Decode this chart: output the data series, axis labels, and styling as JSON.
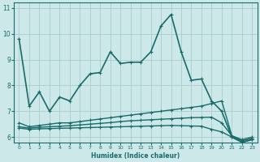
{
  "xlabel": "Humidex (Indice chaleur)",
  "bg_color": "#cce8e8",
  "grid_color": "#aacccc",
  "line_color": "#1a6b6b",
  "xlim": [
    -0.5,
    23.5
  ],
  "ylim": [
    5.8,
    11.2
  ],
  "yticks": [
    6,
    7,
    8,
    9,
    10,
    11
  ],
  "xticks": [
    0,
    1,
    2,
    3,
    4,
    5,
    6,
    7,
    8,
    9,
    10,
    11,
    12,
    13,
    14,
    15,
    16,
    17,
    18,
    19,
    20,
    21,
    22,
    23
  ],
  "series": [
    {
      "x": [
        0,
        1,
        2,
        3,
        4,
        5,
        6,
        7,
        8,
        9,
        10,
        11,
        12,
        13,
        14,
        15,
        16,
        17,
        18,
        19,
        20,
        21,
        22,
        23
      ],
      "y": [
        9.8,
        7.2,
        7.75,
        7.0,
        7.55,
        7.4,
        8.0,
        8.45,
        8.5,
        9.3,
        8.85,
        8.9,
        8.9,
        9.3,
        10.3,
        10.75,
        9.3,
        8.2,
        8.25,
        7.4,
        7.0,
        6.0,
        5.8,
        5.9
      ],
      "marker": "+",
      "linewidth": 1.2,
      "markersize": 3
    },
    {
      "x": [
        0,
        1,
        2,
        3,
        4,
        5,
        6,
        7,
        8,
        9,
        10,
        11,
        12,
        13,
        14,
        15,
        16,
        17,
        18,
        19,
        20,
        21,
        22,
        23
      ],
      "y": [
        6.55,
        6.4,
        6.45,
        6.5,
        6.55,
        6.55,
        6.6,
        6.65,
        6.7,
        6.75,
        6.8,
        6.85,
        6.9,
        6.95,
        7.0,
        7.05,
        7.1,
        7.15,
        7.2,
        7.3,
        7.4,
        6.05,
        5.9,
        6.0
      ],
      "marker": "+",
      "linewidth": 1.0,
      "markersize": 2.5
    },
    {
      "x": [
        0,
        1,
        2,
        3,
        4,
        5,
        6,
        7,
        8,
        9,
        10,
        11,
        12,
        13,
        14,
        15,
        16,
        17,
        18,
        19,
        20,
        21,
        22,
        23
      ],
      "y": [
        6.4,
        6.35,
        6.38,
        6.4,
        6.42,
        6.44,
        6.47,
        6.5,
        6.53,
        6.56,
        6.6,
        6.63,
        6.65,
        6.67,
        6.69,
        6.71,
        6.73,
        6.75,
        6.76,
        6.77,
        6.55,
        6.05,
        5.85,
        5.95
      ],
      "marker": "+",
      "linewidth": 1.0,
      "markersize": 2.5
    },
    {
      "x": [
        0,
        1,
        2,
        3,
        4,
        5,
        6,
        7,
        8,
        9,
        10,
        11,
        12,
        13,
        14,
        15,
        16,
        17,
        18,
        19,
        20,
        21,
        22,
        23
      ],
      "y": [
        6.35,
        6.3,
        6.32,
        6.33,
        6.34,
        6.35,
        6.36,
        6.37,
        6.38,
        6.39,
        6.4,
        6.41,
        6.42,
        6.43,
        6.44,
        6.45,
        6.44,
        6.43,
        6.42,
        6.3,
        6.2,
        6.0,
        5.8,
        5.9
      ],
      "marker": "+",
      "linewidth": 1.0,
      "markersize": 2.5
    }
  ]
}
